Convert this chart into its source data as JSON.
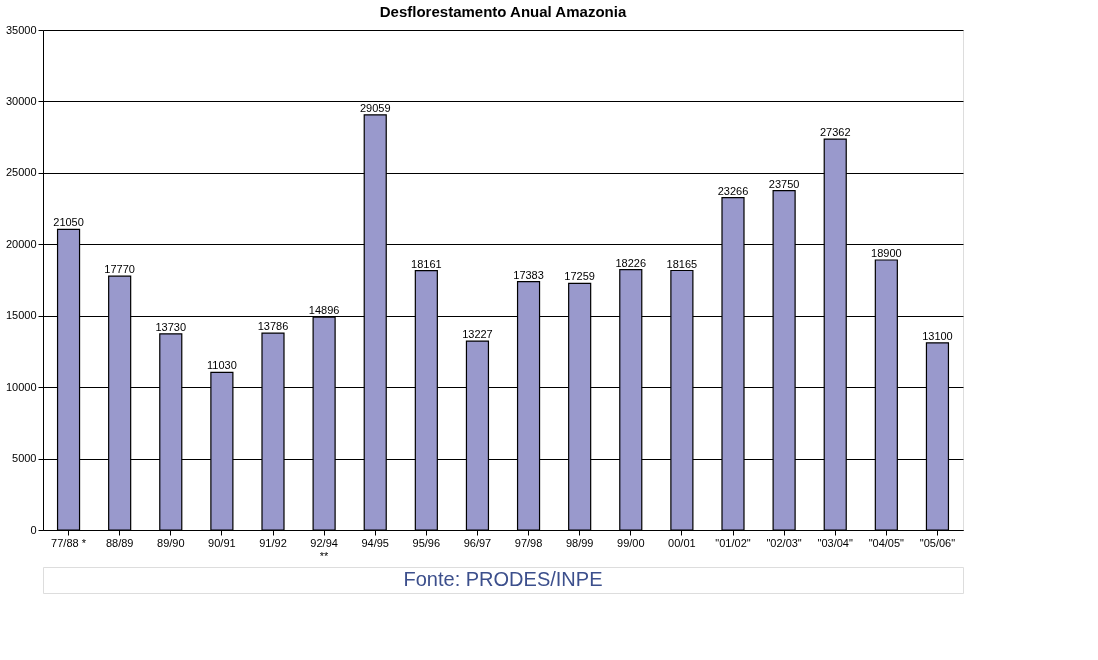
{
  "chart_data": {
    "type": "bar",
    "title": "Desflorestamento Anual Amazonia",
    "categories": [
      "77/88 *",
      "88/89",
      "89/90",
      "90/91",
      "91/92",
      "92/94\n**",
      "94/95",
      "95/96",
      "96/97",
      "97/98",
      "98/99",
      "99/00",
      "00/01",
      "\"01/02\"",
      "\"02/03\"",
      "\"03/04\"",
      "\"04/05\"",
      "\"05/06\""
    ],
    "values": [
      21050,
      17770,
      13730,
      11030,
      13786,
      14896,
      29059,
      18161,
      13227,
      17383,
      17259,
      18226,
      18165,
      23266,
      23750,
      27362,
      18900,
      13100
    ],
    "color": "#9999cc",
    "ylim": [
      0,
      35000
    ],
    "yticks": [
      0,
      5000,
      10000,
      15000,
      20000,
      25000,
      30000,
      35000
    ],
    "grid": "y",
    "data_labels": true,
    "annotations": [
      "Fonte: PRODES/INPE"
    ]
  }
}
